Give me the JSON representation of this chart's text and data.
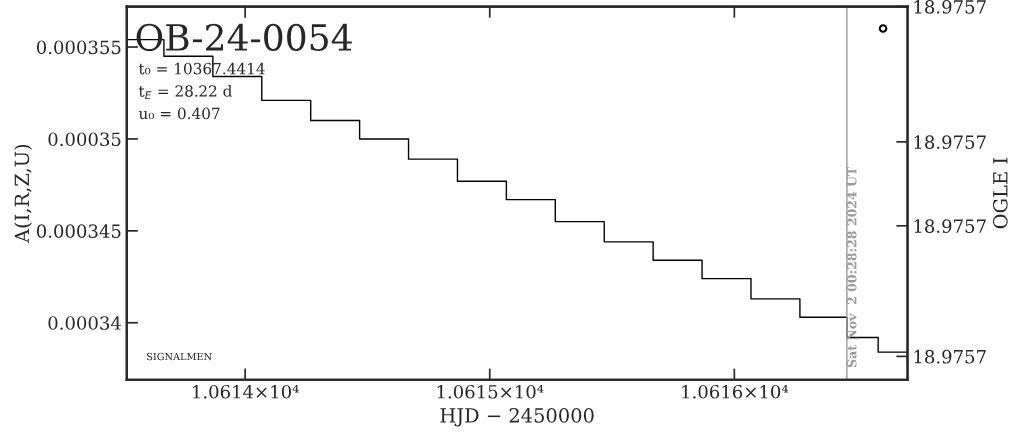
{
  "chart_data": {
    "type": "step",
    "title": "OB-24-0054",
    "xlabel": "HJD − 2450000",
    "ylabel": "A(I,R,Z,U)",
    "y2label": "OGLE I",
    "annotations": [
      "t₀ = 10367.4414",
      "t$_{E}$ = 28.22 d",
      "u₀ = 0.407",
      "Sat Nov  2 00:28:28 2024 UT",
      "SIGNALMEN"
    ],
    "series": [
      {
        "color": "#000000",
        "x": [
          10613.516,
          10613.668,
          10613.868,
          10614.068,
          10614.268,
          10614.468,
          10614.668,
          10614.868,
          10615.068,
          10615.268,
          10615.468,
          10615.668,
          10615.868,
          10616.068,
          10616.268,
          10616.46,
          10616.588,
          10616.708
        ],
        "values": [
          0.0003554,
          0.0003545,
          0.0003534,
          0.0003521,
          0.000351,
          0.00035,
          0.0003489,
          0.0003477,
          0.0003467,
          0.0003455,
          0.0003444,
          0.0003434,
          0.0003424,
          0.0003413,
          0.0003403,
          0.0003392,
          0.0003384,
          0.0003377
        ]
      },
      {
        "type": "scatter",
        "axis": "y2",
        "color": "#000000",
        "marker": "circle",
        "x": [
          10616.608
        ],
        "values": [
          18.9756647
        ]
      }
    ],
    "xlim": [
      10613.516,
      10616.708
    ],
    "xticks": [
      {
        "value": 10614,
        "label": "1.0614×10⁴"
      },
      {
        "value": 10615,
        "label": "1.0615×10⁴"
      },
      {
        "value": 10616,
        "label": "1.0616×10⁴"
      }
    ],
    "ylim": [
      0.0003369,
      0.0003572
    ],
    "yticks": [
      0.00034,
      0.000345,
      0.00035,
      0.000355
    ],
    "y2lim": [
      18.97574,
      18.97566
    ],
    "y2ticks": [
      {
        "value": 18.97566,
        "label": "18.9757"
      },
      {
        "value": 18.975689,
        "label": "18.9757"
      },
      {
        "value": 18.975707,
        "label": "18.9757"
      },
      {
        "value": 18.975735,
        "label": "18.9757"
      }
    ],
    "ref_lines": [
      {
        "axis": "x",
        "value": 10616.46,
        "color": "#999999"
      }
    ],
    "grid": false,
    "legend": false
  }
}
